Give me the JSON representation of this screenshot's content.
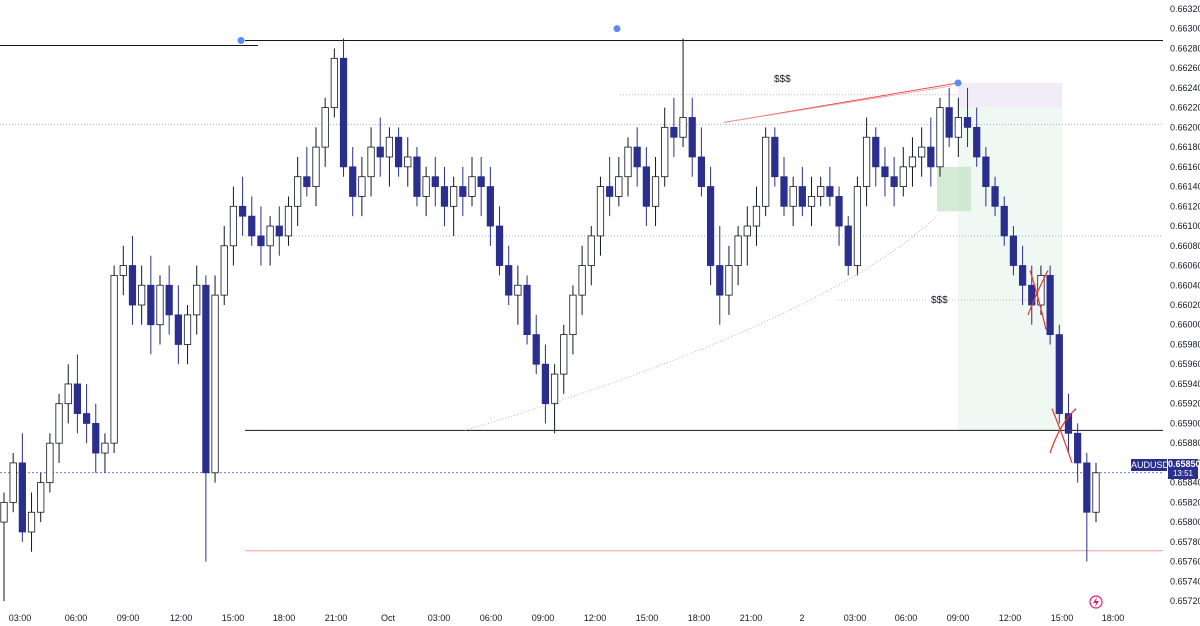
{
  "chart_data": {
    "type": "candlestick",
    "symbol": "AUDUSD",
    "last_price": "0.65850",
    "countdown": "13:51",
    "y_ticks": [
      "0.66320",
      "0.66300",
      "0.66280",
      "0.66260",
      "0.66240",
      "0.66220",
      "0.66200",
      "0.66180",
      "0.66160",
      "0.66140",
      "0.66120",
      "0.66100",
      "0.66080",
      "0.66060",
      "0.66040",
      "0.66020",
      "0.66000",
      "0.65980",
      "0.65960",
      "0.65940",
      "0.65920",
      "0.65900",
      "0.65880",
      "0.65860",
      "0.65840",
      "0.65820",
      "0.65800",
      "0.65780",
      "0.65760",
      "0.65740",
      "0.65720"
    ],
    "x_ticks": [
      "03:00",
      "06:00",
      "09:00",
      "12:00",
      "15:00",
      "18:00",
      "21:00",
      "Oct",
      "03:00",
      "06:00",
      "09:00",
      "12:00",
      "15:00",
      "18:00",
      "21:00",
      "2",
      "03:00",
      "06:00",
      "09:00",
      "12:00",
      "15:00",
      "18:00"
    ],
    "ylim": [
      0.65715,
      0.66325
    ],
    "annotations": {
      "liquidity_high_label": "$$$",
      "liquidity_low_label": "$$$"
    },
    "levels": {
      "high_line": 0.66288,
      "mid_line": 0.65893,
      "current_line": 0.6585,
      "target_line": 0.65771,
      "ref_line_1": 0.66203,
      "ref_line_2": 0.6609
    },
    "colors": {
      "bull_body": "#ffffff",
      "bear_body": "#2a2e8c",
      "wick": "#131722",
      "accent_red": "#e53935",
      "marker_blue": "#5b8def"
    },
    "candles": [
      [
        0.658,
        0.6583,
        0.6572,
        0.6582
      ],
      [
        0.6582,
        0.6587,
        0.6581,
        0.6586
      ],
      [
        0.6586,
        0.6589,
        0.6578,
        0.6579
      ],
      [
        0.6579,
        0.6583,
        0.6577,
        0.6581
      ],
      [
        0.6581,
        0.6585,
        0.658,
        0.6584
      ],
      [
        0.6584,
        0.6589,
        0.6583,
        0.6588
      ],
      [
        0.6588,
        0.6593,
        0.6586,
        0.6592
      ],
      [
        0.6592,
        0.6596,
        0.659,
        0.6594
      ],
      [
        0.6594,
        0.6597,
        0.6589,
        0.6591
      ],
      [
        0.6591,
        0.6594,
        0.6588,
        0.659
      ],
      [
        0.659,
        0.6592,
        0.6585,
        0.6587
      ],
      [
        0.6587,
        0.6589,
        0.6585,
        0.6588
      ],
      [
        0.6588,
        0.6606,
        0.6587,
        0.6605
      ],
      [
        0.6605,
        0.6608,
        0.6603,
        0.6606
      ],
      [
        0.6606,
        0.6609,
        0.66,
        0.6602
      ],
      [
        0.6602,
        0.6606,
        0.66,
        0.6604
      ],
      [
        0.6604,
        0.6607,
        0.6597,
        0.66
      ],
      [
        0.66,
        0.6605,
        0.6598,
        0.6604
      ],
      [
        0.6604,
        0.6606,
        0.6599,
        0.6601
      ],
      [
        0.6601,
        0.6604,
        0.6596,
        0.6598
      ],
      [
        0.6598,
        0.6602,
        0.6596,
        0.6601
      ],
      [
        0.6601,
        0.6606,
        0.6599,
        0.6604
      ],
      [
        0.6604,
        0.6605,
        0.6576,
        0.6585
      ],
      [
        0.6585,
        0.6605,
        0.6584,
        0.6603
      ],
      [
        0.6603,
        0.661,
        0.6602,
        0.6608
      ],
      [
        0.6608,
        0.6614,
        0.6606,
        0.6612
      ],
      [
        0.6612,
        0.6615,
        0.6609,
        0.6611
      ],
      [
        0.6611,
        0.6613,
        0.6608,
        0.6609
      ],
      [
        0.6609,
        0.6612,
        0.6606,
        0.6608
      ],
      [
        0.6608,
        0.6611,
        0.6606,
        0.661
      ],
      [
        0.661,
        0.6612,
        0.6607,
        0.6609
      ],
      [
        0.6609,
        0.6613,
        0.6608,
        0.6612
      ],
      [
        0.6612,
        0.6617,
        0.661,
        0.6615
      ],
      [
        0.6615,
        0.6618,
        0.6613,
        0.6614
      ],
      [
        0.6614,
        0.662,
        0.6612,
        0.6618
      ],
      [
        0.6618,
        0.6623,
        0.6616,
        0.6622
      ],
      [
        0.6622,
        0.6628,
        0.6621,
        0.6627
      ],
      [
        0.6627,
        0.6629,
        0.6615,
        0.6616
      ],
      [
        0.6616,
        0.6618,
        0.6611,
        0.6613
      ],
      [
        0.6613,
        0.6617,
        0.6611,
        0.6615
      ],
      [
        0.6615,
        0.662,
        0.6613,
        0.6618
      ],
      [
        0.6618,
        0.6621,
        0.6615,
        0.6617
      ],
      [
        0.6617,
        0.662,
        0.6614,
        0.6619
      ],
      [
        0.6619,
        0.662,
        0.6615,
        0.6616
      ],
      [
        0.6616,
        0.6619,
        0.6614,
        0.6617
      ],
      [
        0.6617,
        0.6618,
        0.6612,
        0.6613
      ],
      [
        0.6613,
        0.6616,
        0.6611,
        0.6615
      ],
      [
        0.6615,
        0.6617,
        0.6612,
        0.6614
      ],
      [
        0.6614,
        0.6616,
        0.661,
        0.6612
      ],
      [
        0.6612,
        0.6615,
        0.6609,
        0.6614
      ],
      [
        0.6614,
        0.6616,
        0.6611,
        0.6613
      ],
      [
        0.6613,
        0.6617,
        0.6612,
        0.6615
      ],
      [
        0.6615,
        0.6617,
        0.6611,
        0.6614
      ],
      [
        0.6614,
        0.6616,
        0.6608,
        0.661
      ],
      [
        0.661,
        0.6612,
        0.6605,
        0.6606
      ],
      [
        0.6606,
        0.6608,
        0.6602,
        0.6603
      ],
      [
        0.6603,
        0.6606,
        0.66,
        0.6604
      ],
      [
        0.6604,
        0.6605,
        0.6598,
        0.6599
      ],
      [
        0.6599,
        0.6601,
        0.6595,
        0.6596
      ],
      [
        0.6596,
        0.6598,
        0.659,
        0.6592
      ],
      [
        0.6592,
        0.6596,
        0.6589,
        0.6595
      ],
      [
        0.6595,
        0.66,
        0.6593,
        0.6599
      ],
      [
        0.6599,
        0.6604,
        0.6597,
        0.6603
      ],
      [
        0.6603,
        0.6608,
        0.6601,
        0.6606
      ],
      [
        0.6606,
        0.661,
        0.6604,
        0.6609
      ],
      [
        0.6609,
        0.6615,
        0.6607,
        0.6614
      ],
      [
        0.6614,
        0.6617,
        0.6611,
        0.6613
      ],
      [
        0.6613,
        0.6617,
        0.6612,
        0.6615
      ],
      [
        0.6615,
        0.6619,
        0.6613,
        0.6618
      ],
      [
        0.6618,
        0.662,
        0.6614,
        0.6616
      ],
      [
        0.6616,
        0.6618,
        0.661,
        0.6612
      ],
      [
        0.6612,
        0.6617,
        0.661,
        0.6615
      ],
      [
        0.6615,
        0.6622,
        0.6614,
        0.662
      ],
      [
        0.662,
        0.6623,
        0.6617,
        0.6619
      ],
      [
        0.6619,
        0.6629,
        0.6618,
        0.6621
      ],
      [
        0.6621,
        0.6623,
        0.6615,
        0.6617
      ],
      [
        0.6617,
        0.662,
        0.6613,
        0.6614
      ],
      [
        0.6614,
        0.6616,
        0.6604,
        0.6606
      ],
      [
        0.6606,
        0.661,
        0.66,
        0.6603
      ],
      [
        0.6603,
        0.6608,
        0.6601,
        0.6606
      ],
      [
        0.6606,
        0.661,
        0.6604,
        0.6609
      ],
      [
        0.6609,
        0.6612,
        0.6606,
        0.661
      ],
      [
        0.661,
        0.6614,
        0.6608,
        0.6612
      ],
      [
        0.6612,
        0.662,
        0.6611,
        0.6619
      ],
      [
        0.6619,
        0.662,
        0.6614,
        0.6615
      ],
      [
        0.6615,
        0.6617,
        0.6611,
        0.6612
      ],
      [
        0.6612,
        0.6615,
        0.661,
        0.6614
      ],
      [
        0.6614,
        0.6616,
        0.6611,
        0.6612
      ],
      [
        0.6612,
        0.6615,
        0.661,
        0.6613
      ],
      [
        0.6613,
        0.6615,
        0.6612,
        0.6614
      ],
      [
        0.6614,
        0.6616,
        0.6612,
        0.6613
      ],
      [
        0.6613,
        0.6614,
        0.6608,
        0.661
      ],
      [
        0.661,
        0.6611,
        0.6605,
        0.6606
      ],
      [
        0.6606,
        0.6615,
        0.6605,
        0.6614
      ],
      [
        0.6614,
        0.6621,
        0.6612,
        0.6619
      ],
      [
        0.6619,
        0.662,
        0.6614,
        0.6616
      ],
      [
        0.6616,
        0.6618,
        0.6613,
        0.6615
      ],
      [
        0.6615,
        0.6617,
        0.6612,
        0.6614
      ],
      [
        0.6614,
        0.6618,
        0.6613,
        0.6616
      ],
      [
        0.6616,
        0.6619,
        0.6614,
        0.6617
      ],
      [
        0.6617,
        0.662,
        0.6615,
        0.6618
      ],
      [
        0.6618,
        0.6621,
        0.6614,
        0.6616
      ],
      [
        0.6616,
        0.6623,
        0.6615,
        0.6622
      ],
      [
        0.6622,
        0.6624,
        0.6618,
        0.6619
      ],
      [
        0.6619,
        0.6623,
        0.6617,
        0.6621
      ],
      [
        0.6621,
        0.6624,
        0.6618,
        0.662
      ],
      [
        0.662,
        0.6622,
        0.6616,
        0.6617
      ],
      [
        0.6617,
        0.6618,
        0.6612,
        0.6614
      ],
      [
        0.6614,
        0.6615,
        0.6611,
        0.6612
      ],
      [
        0.6612,
        0.6613,
        0.6608,
        0.6609
      ],
      [
        0.6609,
        0.661,
        0.6605,
        0.6606
      ],
      [
        0.6606,
        0.6608,
        0.6602,
        0.6604
      ],
      [
        0.6604,
        0.6606,
        0.66,
        0.6602
      ],
      [
        0.6602,
        0.6606,
        0.6601,
        0.6605
      ],
      [
        0.6605,
        0.6606,
        0.6598,
        0.6599
      ],
      [
        0.6599,
        0.66,
        0.659,
        0.6591
      ],
      [
        0.6591,
        0.6593,
        0.6587,
        0.6589
      ],
      [
        0.6589,
        0.659,
        0.6584,
        0.6586
      ],
      [
        0.6586,
        0.6587,
        0.6576,
        0.6581
      ],
      [
        0.6581,
        0.6586,
        0.658,
        0.6585
      ]
    ]
  }
}
